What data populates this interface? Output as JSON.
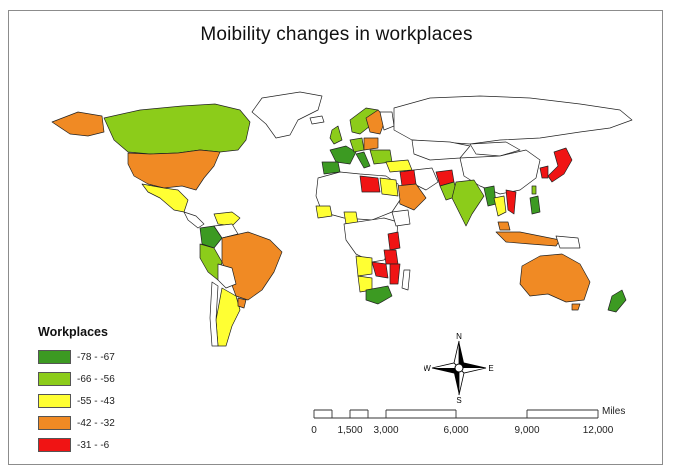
{
  "title": "Moibility changes in workplaces",
  "legend": {
    "title": "Workplaces",
    "items": [
      {
        "label": "-78 - -67",
        "color": "#3c9a22"
      },
      {
        "label": "-66 - -56",
        "color": "#8ccc1a"
      },
      {
        "label": "-55 - -43",
        "color": "#ffff33"
      },
      {
        "label": "-42 - -32",
        "color": "#f08a24"
      },
      {
        "label": "-31 - -6",
        "color": "#f01414"
      }
    ]
  },
  "compass": {
    "n": "N",
    "s": "S",
    "e": "E",
    "w": "W"
  },
  "scale": {
    "unit": "Miles",
    "ticks": [
      "0",
      "1,500",
      "3,000",
      "6,000",
      "9,000",
      "12,000"
    ]
  }
}
